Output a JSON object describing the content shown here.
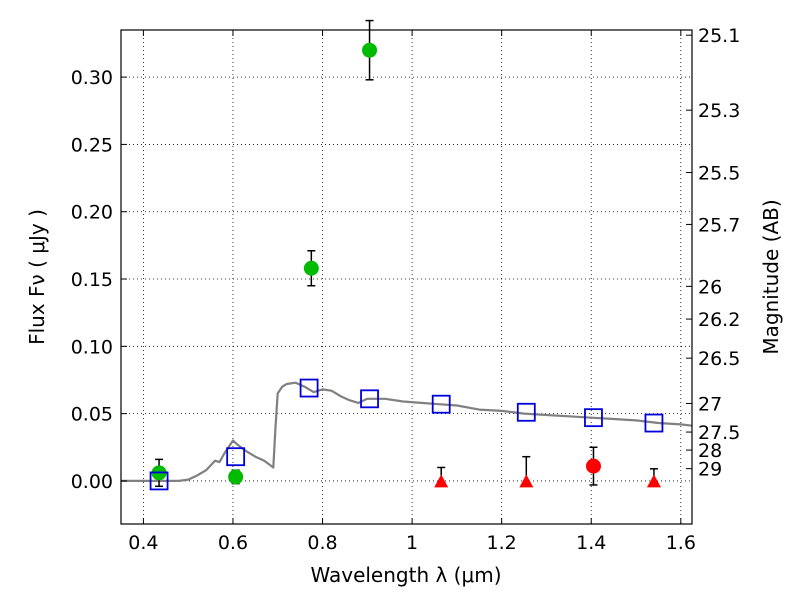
{
  "chart_data": {
    "type": "scatter",
    "title": "",
    "xlabel": "Wavelength  λ (μm)",
    "ylabel": "Flux  Fν  ( μJy )",
    "y2label": "Magnitude (AB)",
    "xlim": [
      0.35,
      1.625
    ],
    "ylim": [
      -0.032,
      0.335
    ],
    "grid": true,
    "grid_style": "dotted",
    "x_ticks": [
      0.4,
      0.6,
      0.8,
      1.0,
      1.2,
      1.4,
      1.6
    ],
    "x_tick_labels": [
      "0.4",
      "0.6",
      "0.8",
      "1",
      "1.2",
      "1.4",
      "1.6"
    ],
    "y_ticks": [
      0.0,
      0.05,
      0.1,
      0.15,
      0.2,
      0.25,
      0.3
    ],
    "y_tick_labels": [
      "0.00",
      "0.05",
      "0.10",
      "0.15",
      "0.20",
      "0.25",
      "0.30"
    ],
    "y2_ticks": [
      25.1,
      25.3,
      25.5,
      25.7,
      26,
      26.2,
      26.5,
      27,
      27.5,
      28,
      29
    ],
    "y2_tick_labels": [
      "25.1",
      "25.3",
      "25.5",
      "25.7",
      "26",
      "26.2",
      "26.5",
      "27",
      "27.5",
      "28",
      "29"
    ],
    "colors": {
      "detections": "#00bb00",
      "upper_limits": "#ff0000",
      "model_photometry": "#0000dd",
      "sed_model": "#808080",
      "error_bars": "#000000"
    },
    "series": [
      {
        "marker": "circle",
        "color": "#00bb00",
        "points": [
          {
            "x": 0.435,
            "y": 0.006,
            "err": 0.01
          },
          {
            "x": 0.606,
            "y": 0.003,
            "err": 0.005
          },
          {
            "x": 0.775,
            "y": 0.158,
            "err": 0.013
          },
          {
            "x": 0.905,
            "y": 0.32,
            "err": 0.022
          }
        ]
      },
      {
        "marker": "triangle",
        "color": "#ff0000",
        "points": [
          {
            "x": 1.065,
            "y": 0.0,
            "err_up": 0.01
          },
          {
            "x": 1.255,
            "y": 0.0,
            "err_up": 0.018
          },
          {
            "x": 1.54,
            "y": 0.0,
            "err_up": 0.009
          }
        ]
      },
      {
        "marker": "circle",
        "color": "#ff0000",
        "points": [
          {
            "x": 1.405,
            "y": 0.011,
            "err": 0.014
          }
        ]
      },
      {
        "marker": "open-square",
        "color": "#0000dd",
        "points": [
          {
            "x": 0.435,
            "y": 0.0
          },
          {
            "x": 0.606,
            "y": 0.018
          },
          {
            "x": 0.77,
            "y": 0.069
          },
          {
            "x": 0.905,
            "y": 0.061
          },
          {
            "x": 1.065,
            "y": 0.057
          },
          {
            "x": 1.255,
            "y": 0.051
          },
          {
            "x": 1.405,
            "y": 0.047
          },
          {
            "x": 1.54,
            "y": 0.043
          }
        ]
      },
      {
        "marker": "line",
        "color": "#808080",
        "x": [
          0.35,
          0.48,
          0.5,
          0.52,
          0.54,
          0.56,
          0.57,
          0.58,
          0.59,
          0.6,
          0.61,
          0.63,
          0.65,
          0.67,
          0.69,
          0.695,
          0.7,
          0.71,
          0.72,
          0.74,
          0.76,
          0.78,
          0.8,
          0.82,
          0.84,
          0.86,
          0.88,
          0.9,
          0.94,
          0.98,
          1.02,
          1.06,
          1.1,
          1.15,
          1.2,
          1.25,
          1.3,
          1.35,
          1.4,
          1.45,
          1.5,
          1.55,
          1.6,
          1.625
        ],
        "y": [
          0.0,
          0.0,
          0.001,
          0.004,
          0.008,
          0.015,
          0.014,
          0.02,
          0.025,
          0.03,
          0.027,
          0.022,
          0.018,
          0.015,
          0.01,
          0.04,
          0.065,
          0.07,
          0.072,
          0.073,
          0.07,
          0.066,
          0.068,
          0.067,
          0.063,
          0.06,
          0.058,
          0.061,
          0.061,
          0.059,
          0.058,
          0.057,
          0.056,
          0.053,
          0.052,
          0.05,
          0.049,
          0.048,
          0.047,
          0.046,
          0.045,
          0.043,
          0.042,
          0.041
        ]
      }
    ]
  }
}
